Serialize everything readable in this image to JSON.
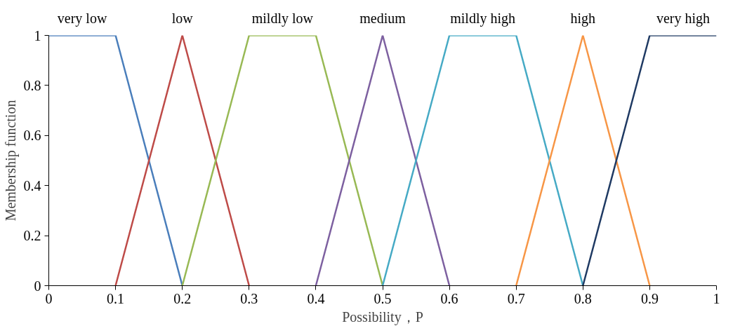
{
  "chart_data": {
    "type": "line",
    "xlabel": "Possibility，P",
    "ylabel": "Membership function",
    "xlim": [
      0,
      1
    ],
    "ylim": [
      0,
      1
    ],
    "xticks": [
      0,
      0.1,
      0.2,
      0.3,
      0.4,
      0.5,
      0.6,
      0.7,
      0.8,
      0.9,
      1
    ],
    "yticks": [
      0,
      0.2,
      0.4,
      0.6,
      0.8,
      1
    ],
    "grid": false,
    "marker": "none",
    "line_style": "solid",
    "series": [
      {
        "name": "very low",
        "color": "#4a7ebb",
        "x": [
          0,
          0.1,
          0.2
        ],
        "values": [
          1,
          1,
          0
        ]
      },
      {
        "name": "low",
        "color": "#be4b48",
        "x": [
          0.1,
          0.2,
          0.3
        ],
        "values": [
          0,
          1,
          0
        ]
      },
      {
        "name": "mildly low",
        "color": "#98b954",
        "x": [
          0.2,
          0.3,
          0.4,
          0.5
        ],
        "values": [
          0,
          1,
          1,
          0
        ]
      },
      {
        "name": "medium",
        "color": "#7d60a0",
        "x": [
          0.4,
          0.5,
          0.6
        ],
        "values": [
          0,
          1,
          0
        ]
      },
      {
        "name": "mildly high",
        "color": "#46aac5",
        "x": [
          0.5,
          0.6,
          0.7,
          0.8
        ],
        "values": [
          0,
          1,
          1,
          0
        ]
      },
      {
        "name": "high",
        "color": "#f79646",
        "x": [
          0.7,
          0.8,
          0.9
        ],
        "values": [
          0,
          1,
          0
        ]
      },
      {
        "name": "very high",
        "color": "#1f3a63",
        "x": [
          0.8,
          0.9,
          1
        ],
        "values": [
          0,
          1,
          1
        ]
      }
    ]
  }
}
